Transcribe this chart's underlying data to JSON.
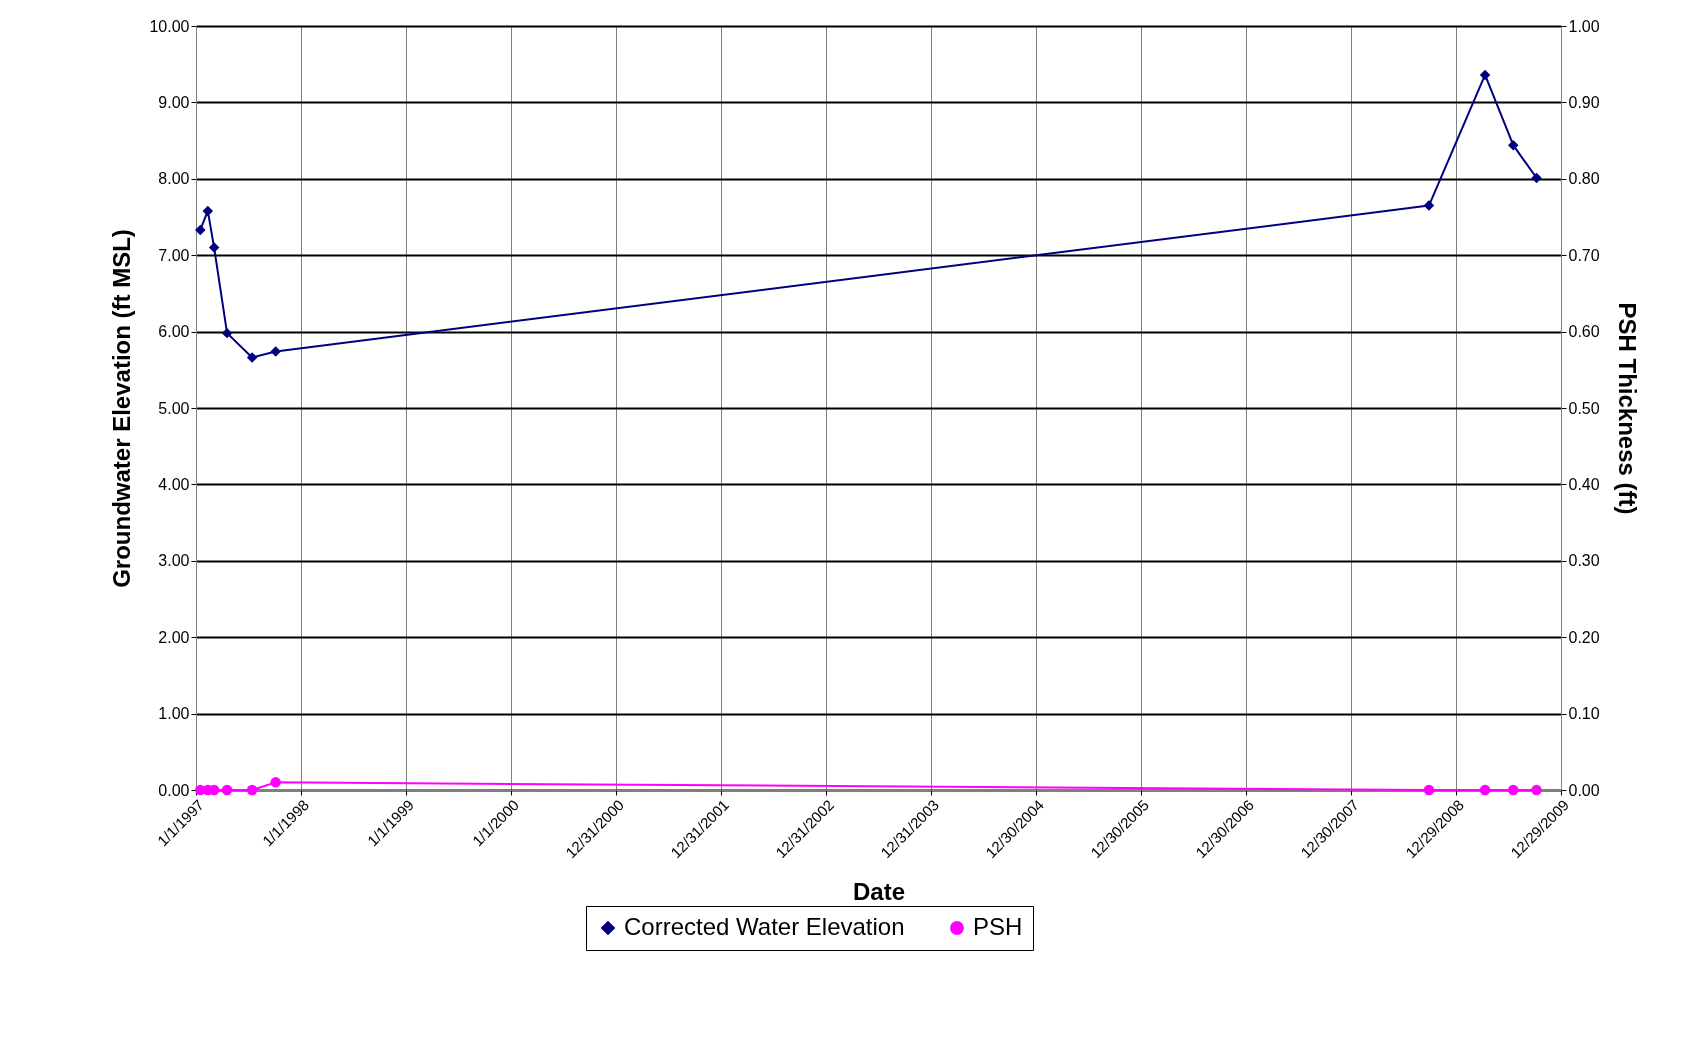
{
  "chart_data": {
    "type": "line",
    "xlabel": "Date",
    "ylabel": "Groundwater Elevation (ft MSL)",
    "y2label": "PSH Thickness (ft)",
    "x": [
      "1997-01-16",
      "1997-02-11",
      "1997-03-05",
      "1997-04-19",
      "1997-07-15",
      "1997-10-05",
      "2008-09-26",
      "2009-04-09",
      "2009-07-16",
      "2009-10-05"
    ],
    "xlim": [
      "1997-01-01",
      "2009-12-29"
    ],
    "xticks": [
      {
        "value": "1997-01-01",
        "label": "1/1/1997"
      },
      {
        "value": "1998-01-01",
        "label": "1/1/1998"
      },
      {
        "value": "1999-01-01",
        "label": "1/1/1999"
      },
      {
        "value": "2000-01-01",
        "label": "1/1/2000"
      },
      {
        "value": "2000-12-31",
        "label": "12/31/2000"
      },
      {
        "value": "2001-12-31",
        "label": "12/31/2001"
      },
      {
        "value": "2002-12-31",
        "label": "12/31/2002"
      },
      {
        "value": "2003-12-31",
        "label": "12/31/2003"
      },
      {
        "value": "2004-12-30",
        "label": "12/30/2004"
      },
      {
        "value": "2005-12-30",
        "label": "12/30/2005"
      },
      {
        "value": "2006-12-30",
        "label": "12/30/2006"
      },
      {
        "value": "2007-12-30",
        "label": "12/30/2007"
      },
      {
        "value": "2008-12-29",
        "label": "12/29/2008"
      },
      {
        "value": "2009-12-29",
        "label": "12/29/2009"
      }
    ],
    "ylim": [
      0,
      10
    ],
    "yticks": [
      {
        "value": 0,
        "label": "0.00"
      },
      {
        "value": 1,
        "label": "1.00"
      },
      {
        "value": 2,
        "label": "2.00"
      },
      {
        "value": 3,
        "label": "3.00"
      },
      {
        "value": 4,
        "label": "4.00"
      },
      {
        "value": 5,
        "label": "5.00"
      },
      {
        "value": 6,
        "label": "6.00"
      },
      {
        "value": 7,
        "label": "7.00"
      },
      {
        "value": 8,
        "label": "8.00"
      },
      {
        "value": 9,
        "label": "9.00"
      },
      {
        "value": 10,
        "label": "10.00"
      }
    ],
    "y2lim": [
      0,
      1
    ],
    "y2ticks": [
      {
        "value": 0,
        "label": "0.00"
      },
      {
        "value": 0.1,
        "label": "0.10"
      },
      {
        "value": 0.2,
        "label": "0.20"
      },
      {
        "value": 0.3,
        "label": "0.30"
      },
      {
        "value": 0.4,
        "label": "0.40"
      },
      {
        "value": 0.5,
        "label": "0.50"
      },
      {
        "value": 0.6,
        "label": "0.60"
      },
      {
        "value": 0.7,
        "label": "0.70"
      },
      {
        "value": 0.8,
        "label": "0.80"
      },
      {
        "value": 0.9,
        "label": "0.90"
      },
      {
        "value": 1,
        "label": "1.00"
      }
    ],
    "grid": true,
    "legend": "bottom",
    "series": [
      {
        "name": "Corrected Water Elevation",
        "color": "#000080",
        "marker": "diamond",
        "values": [
          7.33,
          7.58,
          7.1,
          5.98,
          5.66,
          5.74,
          7.65,
          9.36,
          8.44,
          8.01
        ]
      },
      {
        "name": "PSH",
        "color": "#ff00ff",
        "marker": "circle",
        "axis": "y2",
        "values": [
          0,
          0,
          0,
          0,
          0,
          0.01,
          0,
          0,
          0,
          0
        ]
      }
    ]
  }
}
